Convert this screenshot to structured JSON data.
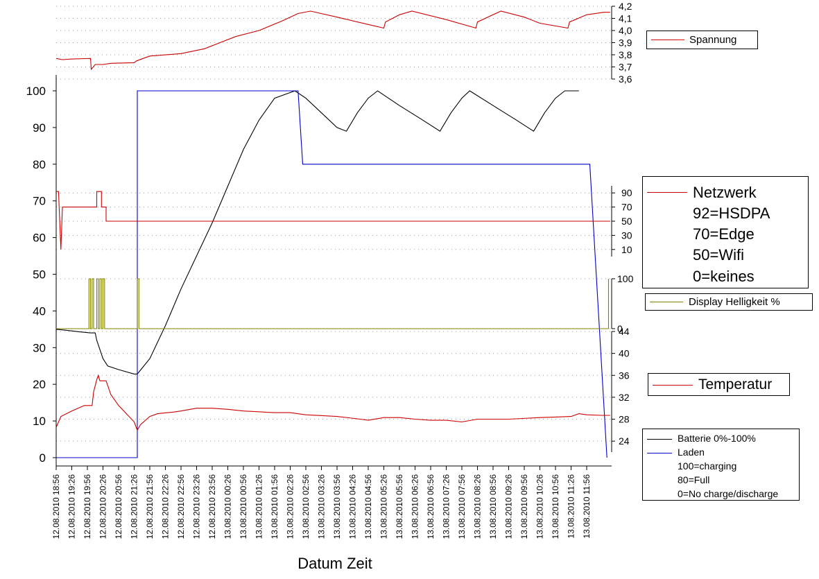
{
  "chart_data": {
    "type": "line",
    "xlabel": "Datum Zeit",
    "x_ticks": [
      "12.08.2010 18:56",
      "12.08.2010 19:26",
      "12.08.2010 19:56",
      "12.08.2010 20:26",
      "12.08.2010 20:56",
      "12.08.2010 21:26",
      "12.08.2010 21:56",
      "12.08.2010 22:26",
      "12.08.2010 22:56",
      "12.08.2010 23:26",
      "12.08.2010 23:56",
      "13.08.2010 00:26",
      "13.08.2010 00:56",
      "13.08.2010 01:26",
      "13.08.2010 01:56",
      "13.08.2010 02:26",
      "13.08.2010 02:56",
      "13.08.2010 03:26",
      "13.08.2010 03:56",
      "13.08.2010 04:26",
      "13.08.2010 04:56",
      "13.08.2010 05:26",
      "13.08.2010 05:56",
      "13.08.2010 06:26",
      "13.08.2010 06:56",
      "13.08.2010 07:26",
      "13.08.2010 07:56",
      "13.08.2010 08:26",
      "13.08.2010 08:56",
      "13.08.2010 09:26",
      "13.08.2010 09:56",
      "13.08.2010 10:26",
      "13.08.2010 10:56",
      "13.08.2010 11:26",
      "13.08.2010 11:56"
    ],
    "x_range": [
      0,
      35
    ],
    "axes": {
      "main": {
        "ticks": [
          "0",
          "10",
          "20",
          "30",
          "40",
          "50",
          "60",
          "70",
          "80",
          "90",
          "100"
        ],
        "ylim": [
          0,
          100
        ]
      },
      "spannung": {
        "ticks": [
          "4,2",
          "4,1",
          "4,0",
          "3,9",
          "3,8",
          "3,7",
          "3,6"
        ],
        "ylim": [
          3.6,
          4.2
        ]
      },
      "netzwerk": {
        "ticks": [
          "90",
          "70",
          "50",
          "30",
          "10"
        ],
        "ylim": [
          0,
          100
        ]
      },
      "helligkeit": {
        "ticks": [
          "100",
          "0"
        ],
        "ylim": [
          0,
          100
        ]
      },
      "temperatur": {
        "ticks": [
          "44",
          "40",
          "36",
          "32",
          "28",
          "24"
        ],
        "ylim": [
          22,
          44
        ]
      }
    },
    "series": [
      {
        "name": "Spannung",
        "axis": "spannung",
        "color": "#cc0000",
        "points": [
          [
            0,
            3.77
          ],
          [
            0.4,
            3.76
          ],
          [
            1,
            3.765
          ],
          [
            2.2,
            3.77
          ],
          [
            2.25,
            3.68
          ],
          [
            2.5,
            3.72
          ],
          [
            3,
            3.72
          ],
          [
            3.5,
            3.73
          ],
          [
            5,
            3.735
          ],
          [
            5.15,
            3.75
          ],
          [
            6,
            3.79
          ],
          [
            8,
            3.81
          ],
          [
            9.5,
            3.85
          ],
          [
            10.5,
            3.9
          ],
          [
            11.5,
            3.95
          ],
          [
            13,
            4.0
          ],
          [
            14.5,
            4.08
          ],
          [
            15.5,
            4.14
          ],
          [
            16.3,
            4.16
          ],
          [
            18,
            4.11
          ],
          [
            20,
            4.05
          ],
          [
            21,
            4.02
          ],
          [
            21.1,
            4.07
          ],
          [
            22,
            4.13
          ],
          [
            22.8,
            4.16
          ],
          [
            25,
            4.09
          ],
          [
            26.9,
            4.02
          ],
          [
            27,
            4.07
          ],
          [
            28.5,
            4.16
          ],
          [
            30,
            4.11
          ],
          [
            31,
            4.06
          ],
          [
            32.8,
            4.02
          ],
          [
            32.9,
            4.07
          ],
          [
            34,
            4.13
          ],
          [
            35.1,
            4.15
          ],
          [
            35.5,
            4.15
          ]
        ]
      },
      {
        "name": "Batterie 0%-100%",
        "axis": "main",
        "color": "#000000",
        "points": [
          [
            0,
            35
          ],
          [
            0.5,
            34.8
          ],
          [
            1.5,
            34.3
          ],
          [
            2.2,
            34
          ],
          [
            2.5,
            34
          ],
          [
            2.6,
            32
          ],
          [
            3,
            27
          ],
          [
            3.3,
            25
          ],
          [
            4,
            24
          ],
          [
            5,
            22.8
          ],
          [
            5.2,
            22.8
          ],
          [
            6,
            27
          ],
          [
            7,
            36
          ],
          [
            8,
            46
          ],
          [
            9,
            55
          ],
          [
            10,
            64
          ],
          [
            11,
            74
          ],
          [
            12,
            84
          ],
          [
            13,
            92
          ],
          [
            14,
            98
          ],
          [
            15.3,
            100
          ],
          [
            16,
            98
          ],
          [
            17,
            94
          ],
          [
            18,
            90
          ],
          [
            18.6,
            89
          ],
          [
            19.3,
            94
          ],
          [
            20,
            98
          ],
          [
            20.6,
            100
          ],
          [
            22,
            96
          ],
          [
            23.5,
            92
          ],
          [
            24.6,
            89
          ],
          [
            25.3,
            94
          ],
          [
            26,
            98
          ],
          [
            26.5,
            100
          ],
          [
            28,
            96
          ],
          [
            29.5,
            92
          ],
          [
            30.6,
            89
          ],
          [
            31.3,
            94
          ],
          [
            32,
            98
          ],
          [
            32.6,
            100
          ],
          [
            33.5,
            100
          ]
        ]
      },
      {
        "name": "Laden",
        "axis": "main",
        "color": "#0000cc",
        "points": [
          [
            0,
            0
          ],
          [
            5.2,
            0
          ],
          [
            5.2,
            100
          ],
          [
            15.5,
            100
          ],
          [
            15.8,
            80
          ],
          [
            34.2,
            80
          ],
          [
            35.3,
            0
          ]
        ]
      },
      {
        "name": "Netzwerk",
        "axis": "netzwerk",
        "color": "#cc0000",
        "points": [
          [
            0,
            92
          ],
          [
            0.15,
            92
          ],
          [
            0.3,
            10
          ],
          [
            0.4,
            70
          ],
          [
            2.6,
            70
          ],
          [
            2.6,
            92
          ],
          [
            2.9,
            92
          ],
          [
            2.9,
            70
          ],
          [
            3.2,
            70
          ],
          [
            3.2,
            50
          ],
          [
            35.5,
            50
          ]
        ]
      },
      {
        "name": "Display Helligkeit %",
        "axis": "helligkeit",
        "color": "#808000",
        "points": [
          [
            0,
            0
          ],
          [
            2.1,
            0
          ],
          [
            2.1,
            100
          ],
          [
            2.2,
            100
          ],
          [
            2.2,
            0
          ],
          [
            2.3,
            0
          ],
          [
            2.3,
            100
          ],
          [
            2.4,
            100
          ],
          [
            2.4,
            0
          ],
          [
            2.6,
            0
          ],
          [
            2.6,
            100
          ],
          [
            2.7,
            100
          ],
          [
            2.7,
            0
          ],
          [
            2.8,
            0
          ],
          [
            2.8,
            100
          ],
          [
            2.9,
            100
          ],
          [
            2.9,
            0
          ],
          [
            3.0,
            0
          ],
          [
            3.0,
            100
          ],
          [
            3.1,
            100
          ],
          [
            3.1,
            0
          ],
          [
            5.2,
            0
          ],
          [
            5.2,
            100
          ],
          [
            5.3,
            100
          ],
          [
            5.3,
            0
          ],
          [
            35.4,
            0
          ],
          [
            35.4,
            100
          ]
        ]
      },
      {
        "name": "Temperatur",
        "axis": "temperatur",
        "color": "#cc0000",
        "points": [
          [
            0,
            26.5
          ],
          [
            0.3,
            28.5
          ],
          [
            1,
            29.5
          ],
          [
            1.8,
            30.5
          ],
          [
            2.3,
            30.5
          ],
          [
            2.4,
            33
          ],
          [
            2.6,
            35.2
          ],
          [
            2.7,
            36
          ],
          [
            2.8,
            35
          ],
          [
            3.2,
            35
          ],
          [
            3.5,
            32.5
          ],
          [
            4,
            30.5
          ],
          [
            5,
            27.5
          ],
          [
            5.2,
            26
          ],
          [
            5.4,
            27
          ],
          [
            6,
            28.5
          ],
          [
            6.5,
            29
          ],
          [
            7.5,
            29.3
          ],
          [
            8,
            29.5
          ],
          [
            9,
            30
          ],
          [
            10,
            30
          ],
          [
            11,
            29.8
          ],
          [
            12,
            29.5
          ],
          [
            14,
            29.2
          ],
          [
            15,
            29.2
          ],
          [
            16,
            28.8
          ],
          [
            18,
            28.5
          ],
          [
            19.5,
            28
          ],
          [
            20,
            27.8
          ],
          [
            21,
            28.3
          ],
          [
            22,
            28.3
          ],
          [
            23,
            28
          ],
          [
            24,
            27.8
          ],
          [
            25,
            27.8
          ],
          [
            26,
            27.5
          ],
          [
            27,
            28
          ],
          [
            28,
            28
          ],
          [
            29,
            28
          ],
          [
            31,
            28.3
          ],
          [
            32,
            28.4
          ],
          [
            33,
            28.5
          ],
          [
            33.5,
            29
          ],
          [
            34,
            28.8
          ],
          [
            35,
            28.7
          ],
          [
            35.5,
            28.7
          ]
        ]
      }
    ],
    "legends": {
      "spannung": [
        "Spannung"
      ],
      "netzwerk": [
        "Netzwerk",
        "92=HSDPA",
        "70=Edge",
        "50=Wifi",
        "0=keines"
      ],
      "helligkeit": [
        "Display Helligkeit %"
      ],
      "temperatur": [
        "Temperatur"
      ],
      "batterie": [
        "Batterie 0%-100%",
        "Laden",
        "100=charging",
        "80=Full",
        "0=No charge/discharge"
      ]
    },
    "grid": "dotted"
  }
}
